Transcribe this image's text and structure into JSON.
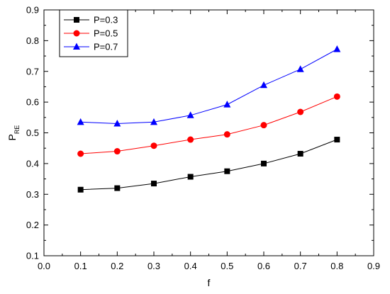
{
  "chart_data": {
    "type": "line",
    "title": "",
    "xlabel": "f",
    "ylabel": "P",
    "ylabel_subscript": "RE",
    "xlim": [
      0.0,
      0.9
    ],
    "ylim": [
      0.1,
      0.9
    ],
    "x_ticks": [
      "0.0",
      "0.1",
      "0.2",
      "0.3",
      "0.4",
      "0.5",
      "0.6",
      "0.7",
      "0.8",
      "0.9"
    ],
    "y_ticks": [
      "0.1",
      "0.2",
      "0.3",
      "0.4",
      "0.5",
      "0.6",
      "0.7",
      "0.8",
      "0.9"
    ],
    "grid": false,
    "legend_position": "top-left",
    "x": [
      0.1,
      0.2,
      0.3,
      0.4,
      0.5,
      0.6,
      0.7,
      0.8
    ],
    "series": [
      {
        "name": "P=0.3",
        "color": "#000000",
        "marker": "square",
        "values": [
          0.315,
          0.32,
          0.335,
          0.357,
          0.375,
          0.4,
          0.432,
          0.478
        ]
      },
      {
        "name": "P=0.5",
        "color": "#ff0000",
        "marker": "circle",
        "values": [
          0.432,
          0.44,
          0.458,
          0.478,
          0.495,
          0.525,
          0.568,
          0.618
        ]
      },
      {
        "name": "P=0.7",
        "color": "#0000ff",
        "marker": "triangle",
        "values": [
          0.535,
          0.53,
          0.535,
          0.557,
          0.592,
          0.655,
          0.707,
          0.772
        ]
      }
    ]
  }
}
